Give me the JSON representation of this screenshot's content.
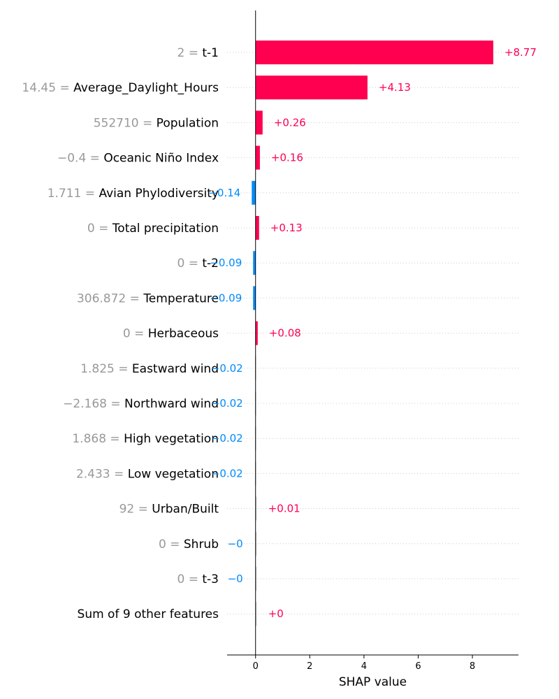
{
  "chart_data": {
    "type": "bar",
    "orientation": "horizontal",
    "xlabel": "SHAP value",
    "xlim": [
      -1.05,
      9.7
    ],
    "x_ticks": [
      0,
      2,
      4,
      6,
      8
    ],
    "positive_color": "#ff0051",
    "negative_color": "#008bfb",
    "features": [
      {
        "value": "2",
        "name": "t-1",
        "shap": 8.77,
        "label": "+8.77"
      },
      {
        "value": "14.45",
        "name": "Average_Daylight_Hours",
        "shap": 4.13,
        "label": "+4.13"
      },
      {
        "value": "552710",
        "name": "Population",
        "shap": 0.26,
        "label": "+0.26"
      },
      {
        "value": "−0.4",
        "name": "Oceanic Niño Index",
        "shap": 0.16,
        "label": "+0.16"
      },
      {
        "value": "1.711",
        "name": "Avian Phylodiversity",
        "shap": -0.14,
        "label": "−0.14"
      },
      {
        "value": "0",
        "name": "Total precipitation",
        "shap": 0.13,
        "label": "+0.13"
      },
      {
        "value": "0",
        "name": "t-2",
        "shap": -0.09,
        "label": "−0.09"
      },
      {
        "value": "306.872",
        "name": "Temperature",
        "shap": -0.09,
        "label": "−0.09"
      },
      {
        "value": "0",
        "name": "Herbaceous",
        "shap": 0.08,
        "label": "+0.08"
      },
      {
        "value": "1.825",
        "name": "Eastward wind",
        "shap": -0.02,
        "label": "−0.02"
      },
      {
        "value": "−2.168",
        "name": "Northward wind",
        "shap": -0.02,
        "label": "−0.02"
      },
      {
        "value": "1.868",
        "name": "High vegetation",
        "shap": -0.02,
        "label": "−0.02"
      },
      {
        "value": "2.433",
        "name": "Low vegetation",
        "shap": -0.02,
        "label": "−0.02"
      },
      {
        "value": "92",
        "name": "Urban/Built",
        "shap": 0.01,
        "label": "+0.01"
      },
      {
        "value": "0",
        "name": "Shrub",
        "shap": -0.001,
        "label": "−0"
      },
      {
        "value": "0",
        "name": "t-3",
        "shap": -0.001,
        "label": "−0"
      },
      {
        "value": "",
        "name": "Sum of 9 other features",
        "shap": 0.001,
        "label": "+0"
      }
    ]
  }
}
